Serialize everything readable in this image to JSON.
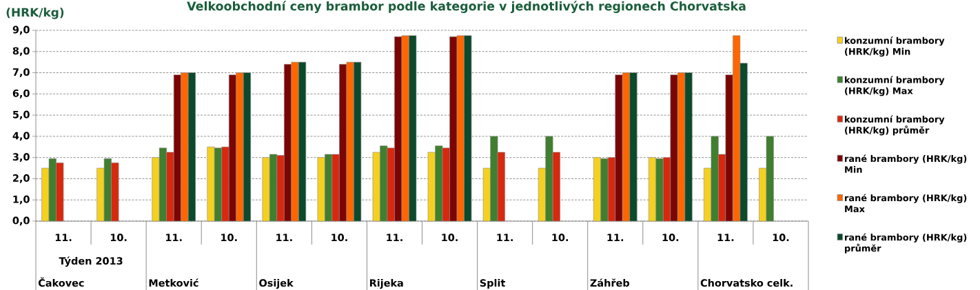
{
  "chart_data": {
    "type": "bar",
    "title": "Velkoobchodní ceny brambor podle kategorie v jednotlivých regionech Chorvatska",
    "ylabel": "(HRK/kg)",
    "xlabel": "Týden 2013",
    "categories": [
      "11.",
      "10.",
      "11.",
      "10.",
      "11.",
      "10.",
      "11.",
      "10.",
      "11.",
      "10.",
      "11.",
      "10.",
      "11.",
      "10."
    ],
    "annotations": [
      "Čakovec",
      "Metković",
      "Osijek",
      "Rijeka",
      "Split",
      "Záhřeb",
      "Chorvatsko celk."
    ],
    "series": [
      {
        "name": "konzumní brambory (HRK/kg) Min",
        "color": "#f5d020",
        "values": [
          2.5,
          2.5,
          3.0,
          3.5,
          3.0,
          3.0,
          3.25,
          3.25,
          2.5,
          2.5,
          3.0,
          3.0,
          2.5,
          2.5
        ]
      },
      {
        "name": "konzumní brambory (HRK/kg) Max",
        "color": "#3f7f2f",
        "values": [
          2.95,
          2.95,
          3.45,
          3.45,
          3.15,
          3.15,
          3.55,
          3.55,
          4.0,
          4.0,
          2.95,
          2.95,
          4.0,
          4.0
        ]
      },
      {
        "name": "konzumní brambory (HRK/kg) průměr",
        "color": "#d8280e",
        "values": [
          2.75,
          2.75,
          3.25,
          3.5,
          3.1,
          3.15,
          3.45,
          3.45,
          3.25,
          3.25,
          3.0,
          3.0,
          3.15,
          null
        ]
      },
      {
        "name": "rané brambory (HRK/kg) Min",
        "color": "#7b0505",
        "values": [
          null,
          null,
          6.9,
          6.9,
          7.4,
          7.4,
          8.7,
          8.7,
          null,
          null,
          6.9,
          6.9,
          6.9,
          null
        ]
      },
      {
        "name": "rané brambory (HRK/kg) Max",
        "color": "#ff6600",
        "values": [
          null,
          null,
          7.0,
          7.0,
          7.5,
          7.5,
          8.75,
          8.75,
          null,
          null,
          7.0,
          7.0,
          8.75,
          null
        ]
      },
      {
        "name": "rané brambory (HRK/kg) průměr",
        "color": "#0b4a2c",
        "values": [
          null,
          null,
          7.0,
          7.0,
          7.5,
          7.5,
          8.75,
          8.75,
          null,
          null,
          7.0,
          7.0,
          7.45,
          null
        ]
      }
    ],
    "ylim": [
      0,
      9
    ],
    "yticks": [
      {
        "value": 0,
        "label": "0,0"
      },
      {
        "value": 1,
        "label": "1,0"
      },
      {
        "value": 2,
        "label": "2,0"
      },
      {
        "value": 3,
        "label": "3,0"
      },
      {
        "value": 4,
        "label": "4,0"
      },
      {
        "value": 5,
        "label": "5,0"
      },
      {
        "value": 6,
        "label": "6,0"
      },
      {
        "value": 7,
        "label": "7,0"
      },
      {
        "value": 8,
        "label": "8,0"
      },
      {
        "value": 9,
        "label": "9,0"
      }
    ],
    "grid": "y",
    "legend": "right"
  }
}
